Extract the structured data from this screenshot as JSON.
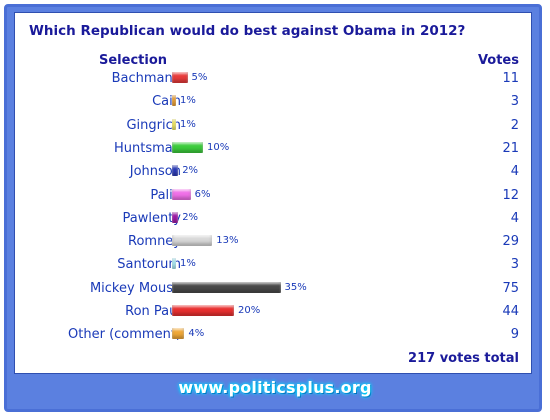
{
  "chart_data": {
    "type": "bar",
    "title": "Which Republican would do best against Obama in 2012?",
    "column_headers": {
      "selection": "Selection",
      "votes": "Votes"
    },
    "rows": [
      {
        "label": "Bachmann",
        "pct": "5%",
        "pct_value": 5,
        "votes": "11",
        "color": "#e83b3b"
      },
      {
        "label": "Cain",
        "pct": "1%",
        "pct_value": 1,
        "votes": "3",
        "color": "#f0a030"
      },
      {
        "label": "Gingrich",
        "pct": "1%",
        "pct_value": 1,
        "votes": "2",
        "color": "#f4ec60"
      },
      {
        "label": "Huntsman",
        "pct": "10%",
        "pct_value": 10,
        "votes": "21",
        "color": "#3ccc3c"
      },
      {
        "label": "Johnson",
        "pct": "2%",
        "pct_value": 2,
        "votes": "4",
        "color": "#2a3ab8"
      },
      {
        "label": "Palin",
        "pct": "6%",
        "pct_value": 6,
        "votes": "12",
        "color": "#f070e8"
      },
      {
        "label": "Pawlenty",
        "pct": "2%",
        "pct_value": 2,
        "votes": "4",
        "color": "#a01aa8"
      },
      {
        "label": "Romney",
        "pct": "13%",
        "pct_value": 13,
        "votes": "29",
        "color": "#d8d8d8"
      },
      {
        "label": "Santorum",
        "pct": "1%",
        "pct_value": 1,
        "votes": "3",
        "color": "#a8ecf8"
      },
      {
        "label": "Mickey Mouse",
        "pct": "35%",
        "pct_value": 35,
        "votes": "75",
        "color": "#4a4a4a"
      },
      {
        "label": "Ron Paul",
        "pct": "20%",
        "pct_value": 20,
        "votes": "44",
        "color": "#e83030"
      },
      {
        "label": "Other (comment)",
        "pct": "4%",
        "pct_value": 4,
        "votes": "9",
        "color": "#f0a838"
      }
    ],
    "total_label": "217 votes total"
  },
  "footer": {
    "site": "www.politicsplus.org"
  }
}
